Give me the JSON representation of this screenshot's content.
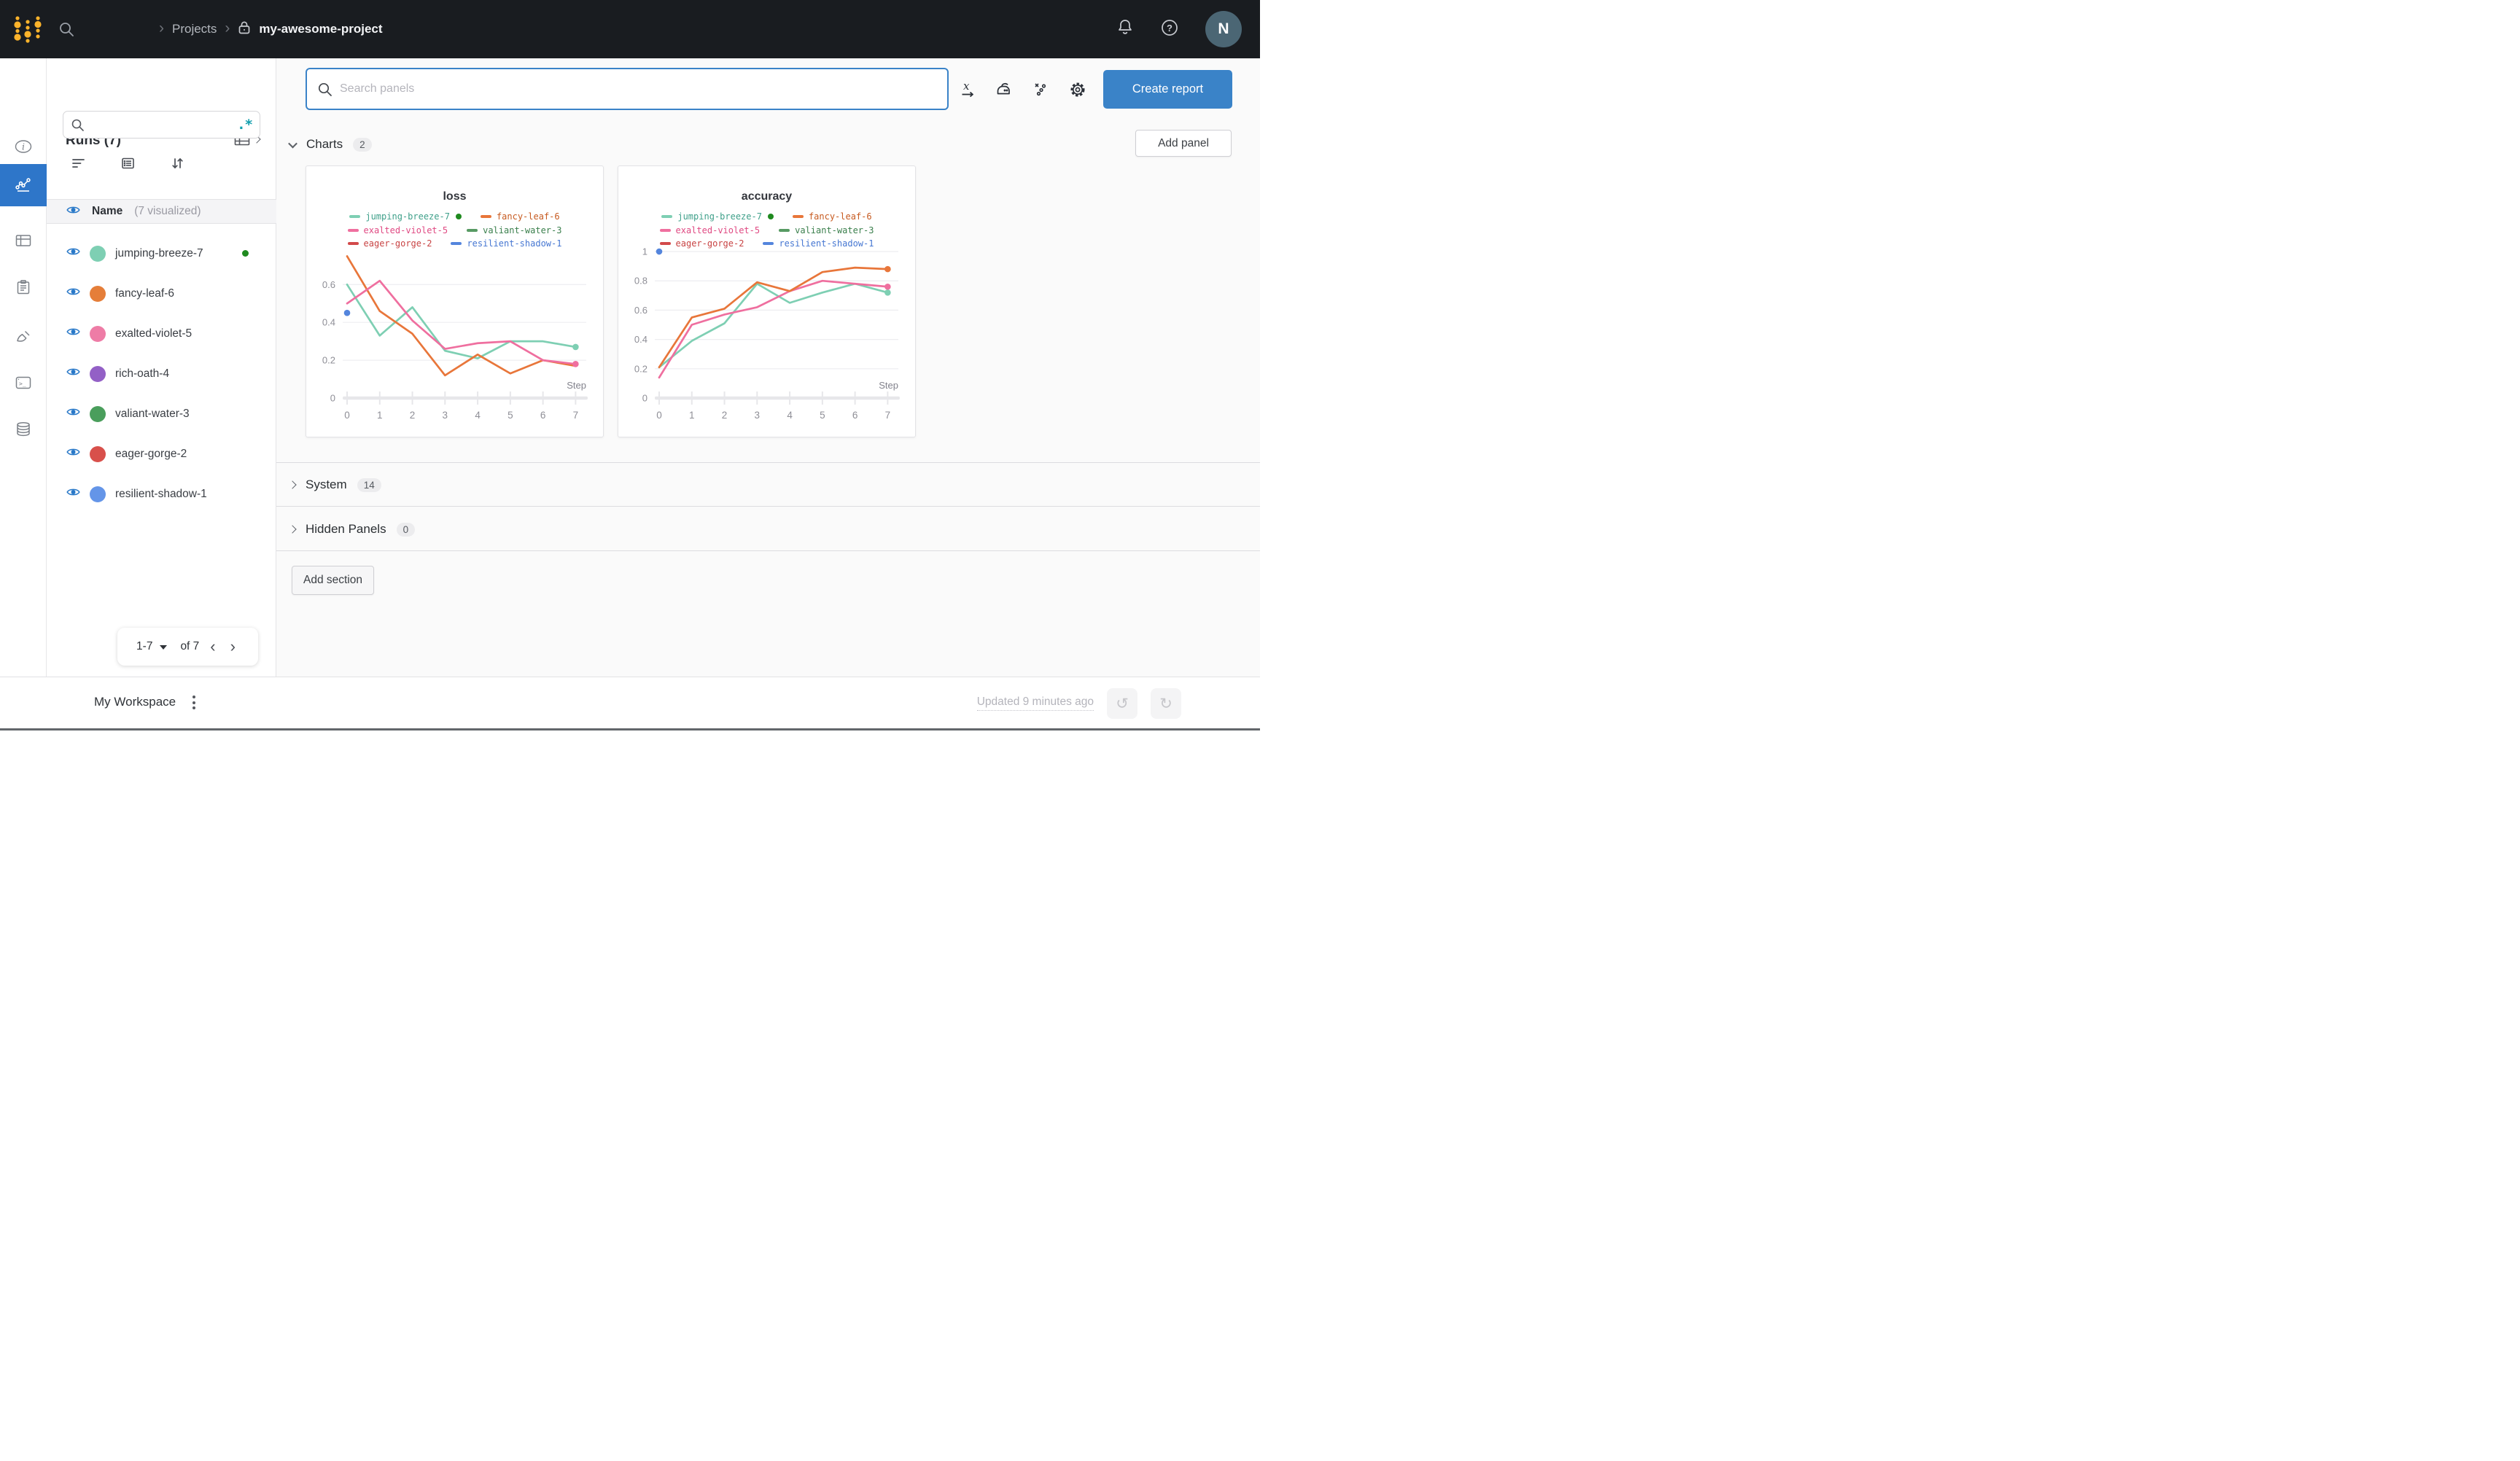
{
  "topbar": {
    "breadcrumb": {
      "projects": "Projects",
      "project": "my-awesome-project"
    },
    "avatar_initial": "N"
  },
  "sidebar": {
    "title": "Runs (7)",
    "regex": ".*",
    "name_header": {
      "label": "Name",
      "suffix": "(7 visualized)"
    },
    "runs": [
      {
        "name": "jumping-breeze-7",
        "color": "#7ecfb3",
        "running": true
      },
      {
        "name": "fancy-leaf-6",
        "color": "#e57e39"
      },
      {
        "name": "exalted-violet-5",
        "color": "#ee7ca6"
      },
      {
        "name": "rich-oath-4",
        "color": "#9360c6"
      },
      {
        "name": "valiant-water-3",
        "color": "#4a9e5c"
      },
      {
        "name": "eager-gorge-2",
        "color": "#d8504b"
      },
      {
        "name": "resilient-shadow-1",
        "color": "#6495e8"
      }
    ],
    "pagination": {
      "range": "1-7",
      "of": "of 7"
    }
  },
  "main": {
    "search_placeholder": "Search panels",
    "create_report": "Create report",
    "add_panel": "Add panel",
    "add_section": "Add section",
    "sections": [
      {
        "label": "Charts",
        "count": "2"
      },
      {
        "label": "System",
        "count": "14"
      },
      {
        "label": "Hidden Panels",
        "count": "0"
      }
    ]
  },
  "footer": {
    "workspace": "My Workspace",
    "updated": "Updated 9 minutes ago"
  },
  "chart_data": [
    {
      "type": "line",
      "title": "loss",
      "xlabel": "Step",
      "x": [
        0,
        1,
        2,
        3,
        4,
        5,
        6,
        7
      ],
      "ylim": [
        0,
        0.79
      ],
      "grid": true,
      "legend_position": "top",
      "yticks": [
        {
          "v": 0,
          "label": "0"
        },
        {
          "v": 0.2,
          "label": "0.2"
        },
        {
          "v": 0.4,
          "label": "0.4"
        },
        {
          "v": 0.6,
          "label": "0.6"
        }
      ],
      "legend": [
        {
          "name": "jumping-breeze-7",
          "color": "#7ecfb3",
          "text": "#3fa08a",
          "running": true
        },
        {
          "name": "fancy-leaf-6",
          "color": "#e8763a",
          "text": "#c75b21"
        },
        {
          "name": "exalted-violet-5",
          "color": "#ef6f9f",
          "text": "#e04a83"
        },
        {
          "name": "valiant-water-3",
          "color": "#579a63",
          "text": "#3a7f4c"
        },
        {
          "name": "eager-gorge-2",
          "color": "#d2494a",
          "text": "#c84343"
        },
        {
          "name": "resilient-shadow-1",
          "color": "#5485dd",
          "text": "#4677d2"
        }
      ],
      "series": [
        {
          "name": "jumping-breeze-7",
          "color": "#7ecfb3",
          "values": [
            0.6,
            0.33,
            0.48,
            0.25,
            0.21,
            0.3,
            0.3,
            0.27
          ],
          "end_dot": true
        },
        {
          "name": "fancy-leaf-6",
          "color": "#e8763a",
          "values": [
            0.75,
            0.46,
            0.34,
            0.12,
            0.23,
            0.13,
            0.2,
            0.17
          ]
        },
        {
          "name": "exalted-violet-5",
          "color": "#ef6f9f",
          "values": [
            0.5,
            0.62,
            0.41,
            0.26,
            0.29,
            0.3,
            0.2,
            0.18
          ],
          "end_dot": true
        },
        {
          "name": "valiant-water-3",
          "color": "#579a63",
          "values": []
        },
        {
          "name": "eager-gorge-2",
          "color": "#d2494a",
          "values": []
        },
        {
          "name": "resilient-shadow-1",
          "color": "#5485dd",
          "point": [
            0,
            0.45
          ]
        }
      ]
    },
    {
      "type": "line",
      "title": "accuracy",
      "xlabel": "Step",
      "x": [
        0,
        1,
        2,
        3,
        4,
        5,
        6,
        7
      ],
      "ylim": [
        0,
        1.02
      ],
      "grid": true,
      "legend_position": "top",
      "yticks": [
        {
          "v": 0,
          "label": "0"
        },
        {
          "v": 0.2,
          "label": "0.2"
        },
        {
          "v": 0.4,
          "label": "0.4"
        },
        {
          "v": 0.6,
          "label": "0.6"
        },
        {
          "v": 0.8,
          "label": "0.8"
        },
        {
          "v": 1,
          "label": "1"
        }
      ],
      "legend": [
        {
          "name": "jumping-breeze-7",
          "color": "#7ecfb3",
          "text": "#3fa08a",
          "running": true
        },
        {
          "name": "fancy-leaf-6",
          "color": "#e8763a",
          "text": "#c75b21"
        },
        {
          "name": "exalted-violet-5",
          "color": "#ef6f9f",
          "text": "#e04a83"
        },
        {
          "name": "valiant-water-3",
          "color": "#579a63",
          "text": "#3a7f4c"
        },
        {
          "name": "eager-gorge-2",
          "color": "#d2494a",
          "text": "#c84343"
        },
        {
          "name": "resilient-shadow-1",
          "color": "#5485dd",
          "text": "#4677d2"
        }
      ],
      "series": [
        {
          "name": "jumping-breeze-7",
          "color": "#7ecfb3",
          "values": [
            0.21,
            0.39,
            0.51,
            0.78,
            0.65,
            0.72,
            0.78,
            0.72
          ],
          "end_dot": true
        },
        {
          "name": "exalted-violet-5",
          "color": "#ef6f9f",
          "values": [
            0.14,
            0.5,
            0.57,
            0.62,
            0.73,
            0.8,
            0.78,
            0.76
          ],
          "end_dot": true
        },
        {
          "name": "fancy-leaf-6",
          "color": "#e8763a",
          "values": [
            0.21,
            0.55,
            0.61,
            0.79,
            0.73,
            0.86,
            0.89,
            0.88
          ],
          "end_dot": true
        },
        {
          "name": "valiant-water-3",
          "color": "#579a63",
          "values": []
        },
        {
          "name": "eager-gorge-2",
          "color": "#d2494a",
          "values": []
        },
        {
          "name": "resilient-shadow-1",
          "color": "#5485dd",
          "point": [
            0,
            1.0
          ]
        }
      ]
    }
  ]
}
